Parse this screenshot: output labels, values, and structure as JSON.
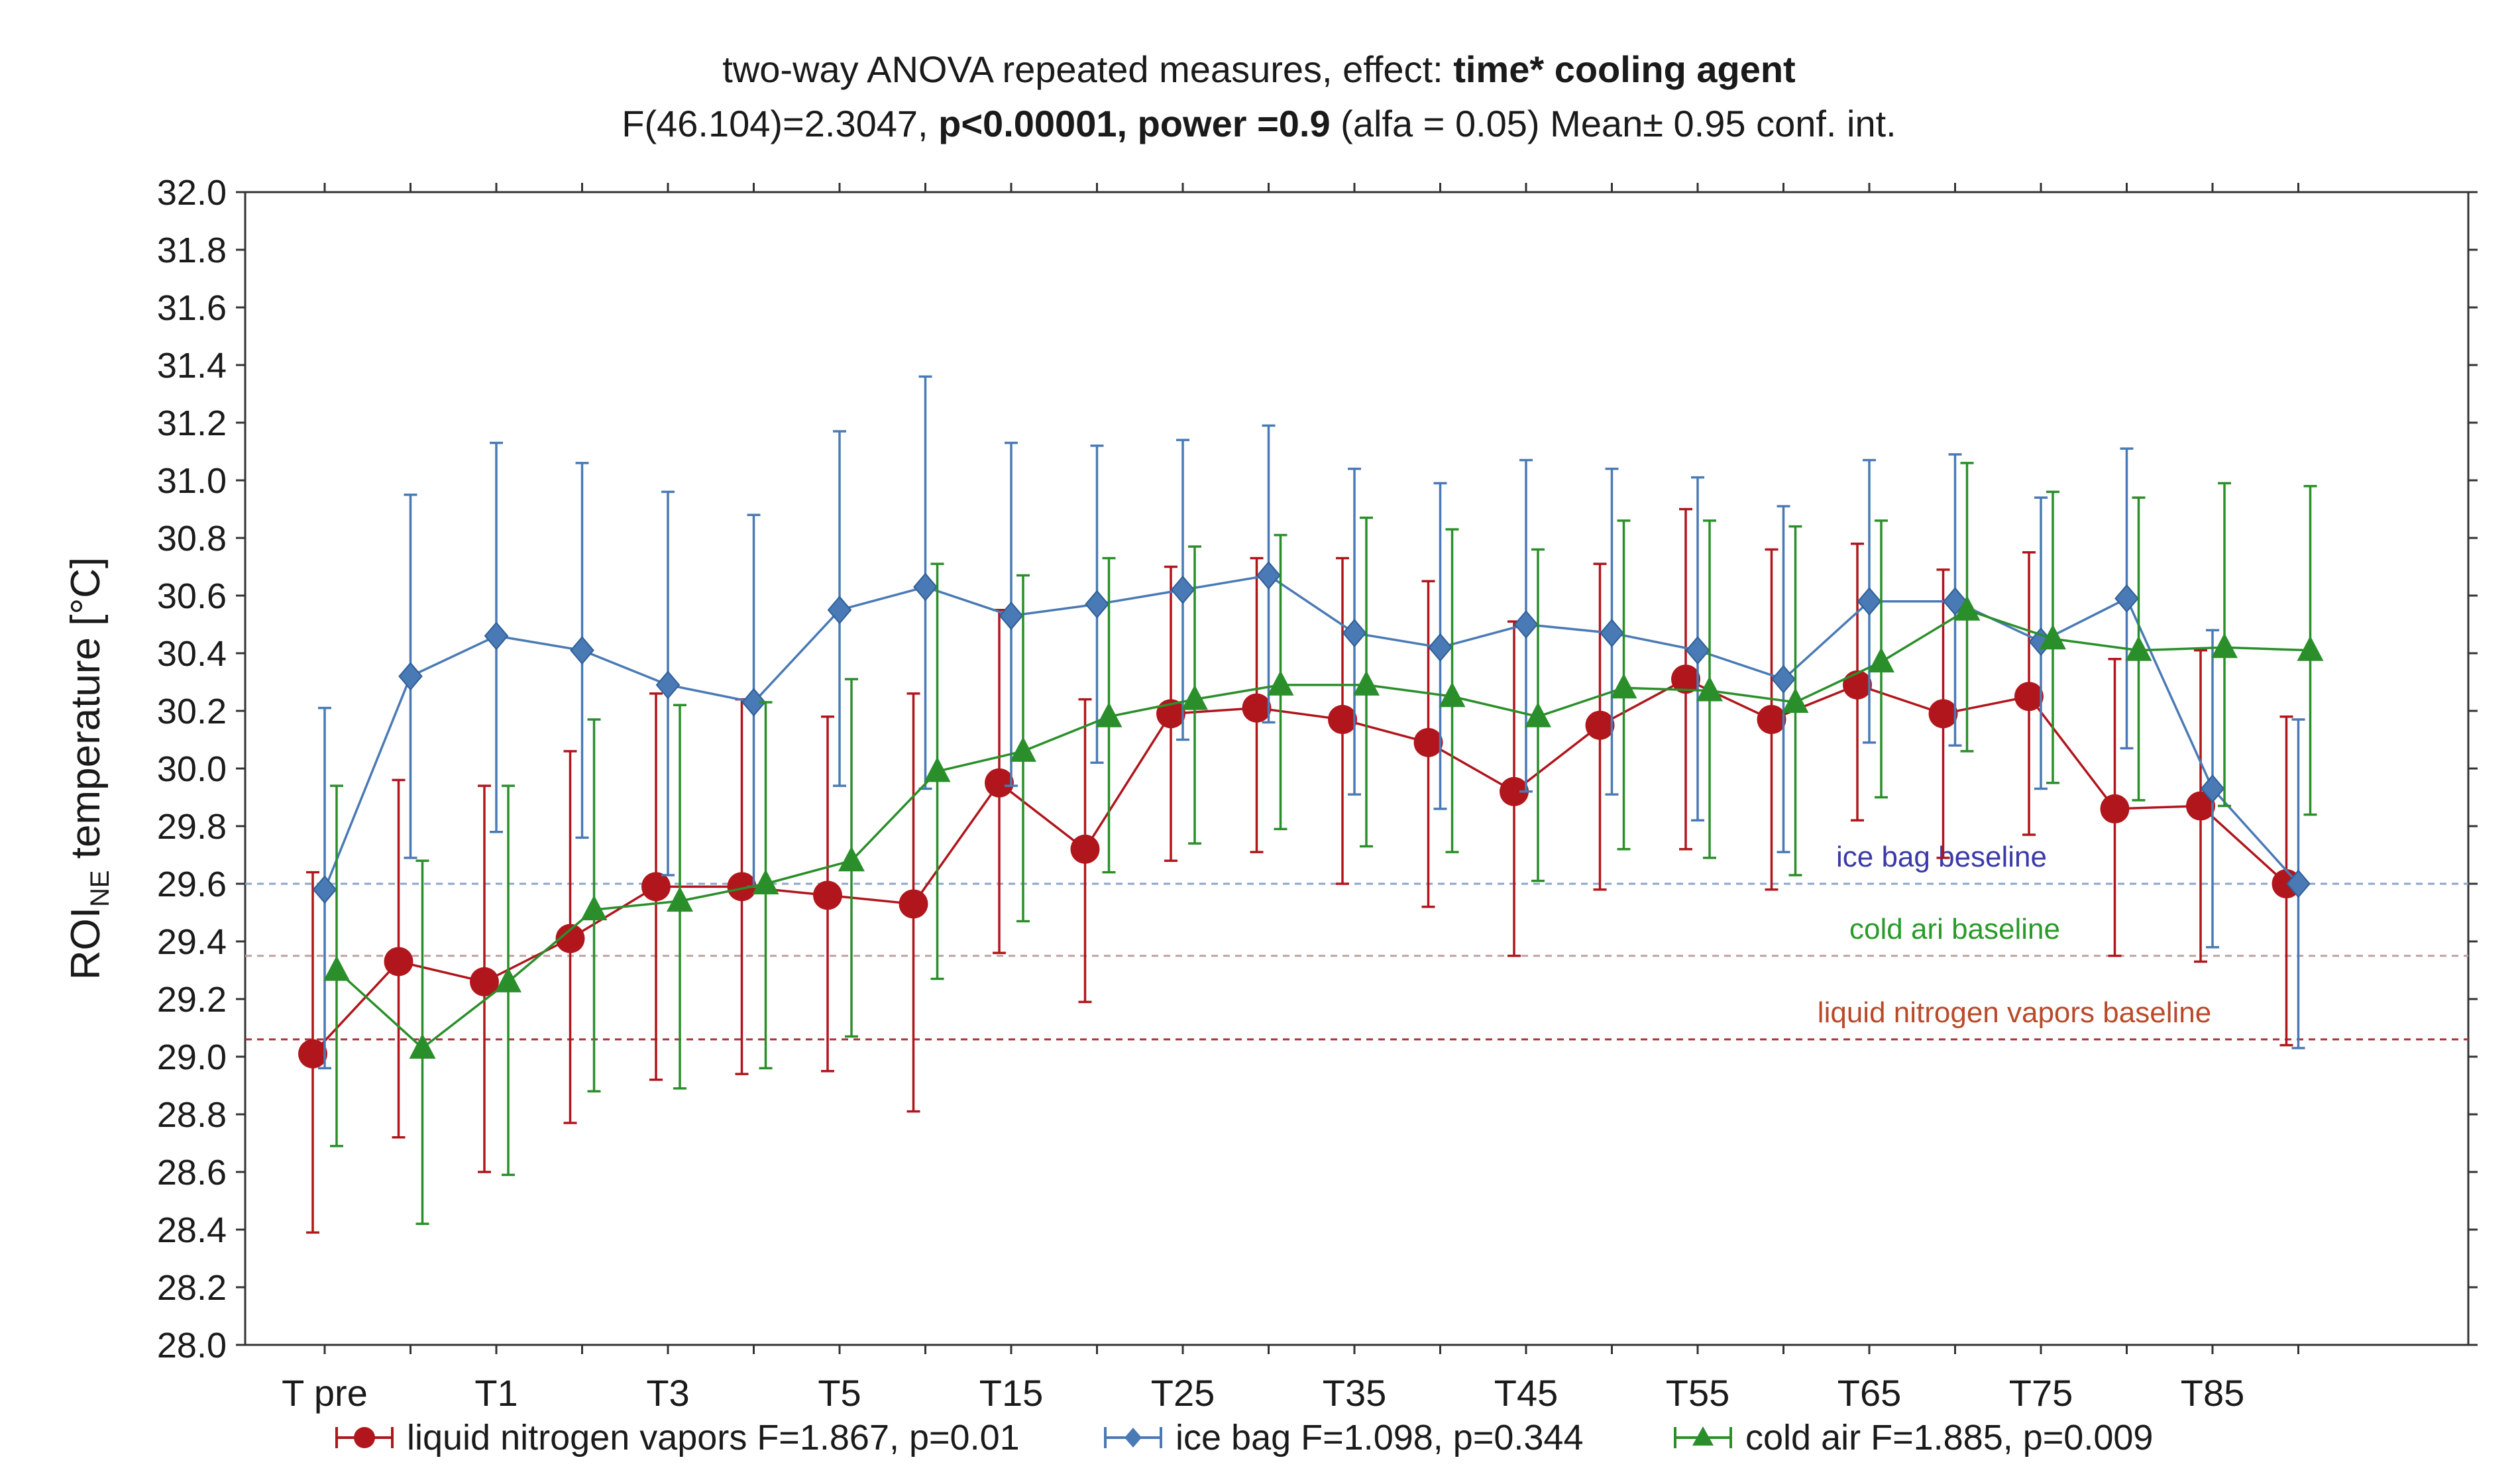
{
  "chart_data": {
    "type": "line",
    "title_line1_plain": "two-way ANOVA repeated measures, effect: ",
    "title_line1_bold": "time* cooling agent",
    "title_line2": {
      "part1": "F(46.104)=2.3047, ",
      "bold1": "p<0.00001, power =0.9",
      "part2": " (alfa = 0.05) Mean± 0.95 conf. int."
    },
    "ylabel_main": "ROI",
    "ylabel_sub": "NE",
    "ylabel_rest": " temperature [°C]",
    "ylim": [
      28.0,
      32.0
    ],
    "yticks": [
      "32.0",
      "31.8",
      "31.6",
      "31.4",
      "31.2",
      "31.0",
      "30.8",
      "30.6",
      "30.4",
      "30.2",
      "30.0",
      "29.8",
      "29.6",
      "29.4",
      "29.2",
      "29.0",
      "28.8",
      "28.6",
      "28.4",
      "28.2",
      "28.0"
    ],
    "categories": [
      "T pre",
      "",
      "T1",
      "",
      "T3",
      "",
      "T5",
      "",
      "T15",
      "",
      "T25",
      "",
      "T35",
      "",
      "T45",
      "",
      "T55",
      "",
      "T65",
      "",
      "T75",
      "",
      "T85",
      ""
    ],
    "xtick_labels": [
      "T pre",
      "T1",
      "T3",
      "T5",
      "T15",
      "T25",
      "T35",
      "T45",
      "T55",
      "T65",
      "T75",
      "T85"
    ],
    "series": [
      {
        "name": "liquid nitrogen vapors",
        "legend": "liquid nitrogen vapors F=1.867, p=0.01",
        "color": "#b0161c",
        "marker": "circle",
        "values": [
          29.01,
          29.33,
          29.26,
          29.41,
          29.59,
          29.59,
          29.56,
          29.53,
          29.95,
          29.72,
          30.19,
          30.21,
          30.17,
          30.09,
          29.92,
          30.15,
          30.31,
          30.17,
          30.29,
          30.19,
          30.25,
          29.86,
          29.87,
          29.6
        ],
        "ci_low": [
          28.39,
          28.72,
          28.6,
          28.77,
          28.92,
          28.94,
          28.95,
          28.81,
          29.36,
          29.19,
          29.68,
          29.71,
          29.6,
          29.52,
          29.35,
          29.58,
          29.72,
          29.58,
          29.82,
          29.69,
          29.77,
          29.35,
          29.33,
          29.04
        ],
        "ci_high": [
          29.64,
          29.96,
          29.94,
          30.06,
          30.26,
          30.24,
          30.18,
          30.26,
          30.55,
          30.24,
          30.7,
          30.73,
          30.73,
          30.65,
          30.51,
          30.71,
          30.9,
          30.76,
          30.78,
          30.69,
          30.75,
          30.38,
          30.41,
          30.18
        ]
      },
      {
        "name": "ice bag",
        "legend": "ice bag F=1.098, p=0.344",
        "color": "#4a7ab5",
        "marker": "diamond",
        "values": [
          29.58,
          30.32,
          30.46,
          30.41,
          30.29,
          30.23,
          30.55,
          30.63,
          30.53,
          30.57,
          30.62,
          30.67,
          30.47,
          30.42,
          30.5,
          30.47,
          30.41,
          30.31,
          30.58,
          30.58,
          30.44,
          30.59,
          29.93,
          29.6
        ],
        "ci_low": [
          28.96,
          29.69,
          29.78,
          29.76,
          29.63,
          29.59,
          29.94,
          29.93,
          29.94,
          30.02,
          30.1,
          30.16,
          29.91,
          29.86,
          29.92,
          29.91,
          29.82,
          29.71,
          30.09,
          30.08,
          29.93,
          30.07,
          29.38,
          29.03
        ],
        "ci_high": [
          30.21,
          30.95,
          31.13,
          31.06,
          30.96,
          30.88,
          31.17,
          31.36,
          31.13,
          31.12,
          31.14,
          31.19,
          31.04,
          30.99,
          31.07,
          31.04,
          31.01,
          30.91,
          31.07,
          31.09,
          30.94,
          31.11,
          30.48,
          30.17
        ]
      },
      {
        "name": "cold air",
        "legend": "cold air F=1.885, p=0.009",
        "color": "#2a8f2a",
        "marker": "triangle",
        "values": [
          29.3,
          29.03,
          29.26,
          29.51,
          29.54,
          29.6,
          29.68,
          29.99,
          30.06,
          30.18,
          30.24,
          30.29,
          30.29,
          30.25,
          30.18,
          30.28,
          30.27,
          30.23,
          30.37,
          30.55,
          30.45,
          30.41,
          30.42,
          30.41
        ],
        "ci_low": [
          28.69,
          28.42,
          28.59,
          28.88,
          28.89,
          28.96,
          29.07,
          29.27,
          29.47,
          29.64,
          29.74,
          29.79,
          29.73,
          29.71,
          29.61,
          29.72,
          29.69,
          29.63,
          29.9,
          30.06,
          29.95,
          29.89,
          29.87,
          29.84
        ],
        "ci_high": [
          29.94,
          29.68,
          29.94,
          30.17,
          30.22,
          30.23,
          30.31,
          30.71,
          30.67,
          30.73,
          30.77,
          30.81,
          30.87,
          30.83,
          30.76,
          30.86,
          30.86,
          30.84,
          30.86,
          31.06,
          30.96,
          30.94,
          30.99,
          30.98
        ]
      }
    ],
    "baselines": [
      {
        "label": "ice bag beseline",
        "value": 29.6,
        "color": "#3a3aa8",
        "line_color": "#8aa6c8"
      },
      {
        "label": "cold ari baseline",
        "value": 29.35,
        "color": "#2a9a2a",
        "line_color": "#c0a0a0"
      },
      {
        "label": "liquid nitrogen vapors baseline",
        "value": 29.06,
        "color": "#b84a2a",
        "line_color": "#b0303a"
      }
    ],
    "grid": false
  }
}
